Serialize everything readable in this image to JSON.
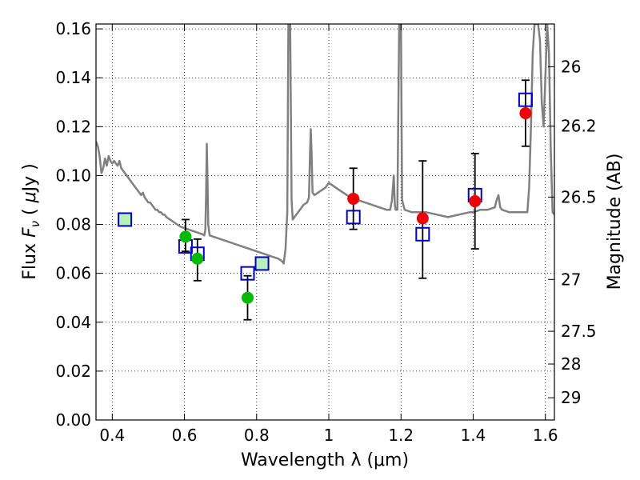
{
  "chart_data": {
    "type": "scatter",
    "xlabel": "Wavelength  λ (μm)",
    "ylabel": "Flux  F_ν  ( μJy )",
    "ylabel_right": "Magnitude (AB)",
    "xlim": [
      0.355,
      1.625
    ],
    "ylim": [
      0.0,
      0.162
    ],
    "grid": true,
    "xticks": [
      "0.4",
      "0.6",
      "0.8",
      "1",
      "1.2",
      "1.4",
      "1.6"
    ],
    "xtick_values": [
      0.4,
      0.6,
      0.8,
      1.0,
      1.2,
      1.4,
      1.6
    ],
    "yticks": [
      "0.00",
      "0.02",
      "0.04",
      "0.06",
      "0.08",
      "0.10",
      "0.12",
      "0.14",
      "0.16"
    ],
    "ytick_values": [
      0.0,
      0.02,
      0.04,
      0.06,
      0.08,
      0.1,
      0.12,
      0.14,
      0.16
    ],
    "right_ticks": [
      {
        "label": "26",
        "flux": 0.1445
      },
      {
        "label": "26.2",
        "flux": 0.1202
      },
      {
        "label": "26.5",
        "flux": 0.0912
      },
      {
        "label": "27",
        "flux": 0.0575
      },
      {
        "label": "27.5",
        "flux": 0.0363
      },
      {
        "label": "28",
        "flux": 0.0229
      },
      {
        "label": "29",
        "flux": 0.0091
      }
    ],
    "colors": {
      "model": "#808080",
      "green": "#00bb00",
      "red": "#ee0000",
      "square": "#0000cc",
      "square_fill": "#ffffff",
      "square_fill_green": "#b8f0b8",
      "errorbar": "#000000",
      "grid": "#000000"
    },
    "series": [
      {
        "marker": "green-circle",
        "points": [
          {
            "x": 0.603,
            "y": 0.075,
            "yerr": [
              0.069,
              0.082
            ]
          },
          {
            "x": 0.636,
            "y": 0.066,
            "yerr": [
              0.057,
              0.074
            ]
          },
          {
            "x": 0.775,
            "y": 0.05,
            "yerr": [
              0.041,
              0.059
            ]
          }
        ]
      },
      {
        "marker": "red-circle",
        "points": [
          {
            "x": 1.068,
            "y": 0.0905,
            "yerr": [
              0.078,
              0.103
            ]
          },
          {
            "x": 1.26,
            "y": 0.0825,
            "yerr": [
              0.058,
              0.106
            ]
          },
          {
            "x": 1.405,
            "y": 0.0895,
            "yerr": [
              0.07,
              0.109
            ]
          },
          {
            "x": 1.545,
            "y": 0.1255,
            "yerr": [
              0.112,
              0.139
            ]
          }
        ]
      },
      {
        "marker": "blue-square",
        "points": [
          {
            "x": 0.435,
            "y": 0.082,
            "fill": "green"
          },
          {
            "x": 0.603,
            "y": 0.071
          },
          {
            "x": 0.636,
            "y": 0.068
          },
          {
            "x": 0.775,
            "y": 0.06
          },
          {
            "x": 0.815,
            "y": 0.064,
            "fill": "green"
          },
          {
            "x": 1.068,
            "y": 0.083
          },
          {
            "x": 1.26,
            "y": 0.076
          },
          {
            "x": 1.405,
            "y": 0.092
          },
          {
            "x": 1.545,
            "y": 0.131
          }
        ]
      },
      {
        "marker": "model-line",
        "points": [
          [
            0.355,
            0.114
          ],
          [
            0.36,
            0.112
          ],
          [
            0.365,
            0.108
          ],
          [
            0.37,
            0.101
          ],
          [
            0.375,
            0.103
          ],
          [
            0.38,
            0.107
          ],
          [
            0.385,
            0.104
          ],
          [
            0.39,
            0.108
          ],
          [
            0.395,
            0.106
          ],
          [
            0.4,
            0.105
          ],
          [
            0.405,
            0.106
          ],
          [
            0.41,
            0.105
          ],
          [
            0.415,
            0.104
          ],
          [
            0.42,
            0.106
          ],
          [
            0.425,
            0.103
          ],
          [
            0.43,
            0.102
          ],
          [
            0.435,
            0.101
          ],
          [
            0.44,
            0.1
          ],
          [
            0.445,
            0.099
          ],
          [
            0.45,
            0.098
          ],
          [
            0.455,
            0.097
          ],
          [
            0.46,
            0.096
          ],
          [
            0.465,
            0.095
          ],
          [
            0.47,
            0.094
          ],
          [
            0.475,
            0.093
          ],
          [
            0.48,
            0.092
          ],
          [
            0.485,
            0.093
          ],
          [
            0.49,
            0.091
          ],
          [
            0.495,
            0.09
          ],
          [
            0.5,
            0.089
          ],
          [
            0.505,
            0.089
          ],
          [
            0.51,
            0.088
          ],
          [
            0.515,
            0.087
          ],
          [
            0.52,
            0.086
          ],
          [
            0.525,
            0.086
          ],
          [
            0.53,
            0.085
          ],
          [
            0.535,
            0.085
          ],
          [
            0.54,
            0.084
          ],
          [
            0.545,
            0.084
          ],
          [
            0.55,
            0.083
          ],
          [
            0.56,
            0.082
          ],
          [
            0.57,
            0.081
          ],
          [
            0.58,
            0.08
          ],
          [
            0.59,
            0.079
          ],
          [
            0.6,
            0.0785
          ],
          [
            0.61,
            0.078
          ],
          [
            0.62,
            0.0775
          ],
          [
            0.63,
            0.077
          ],
          [
            0.64,
            0.0765
          ],
          [
            0.65,
            0.076
          ],
          [
            0.655,
            0.0755
          ],
          [
            0.658,
            0.078
          ],
          [
            0.66,
            0.092
          ],
          [
            0.662,
            0.113
          ],
          [
            0.664,
            0.098
          ],
          [
            0.666,
            0.08
          ],
          [
            0.67,
            0.0755
          ],
          [
            0.68,
            0.075
          ],
          [
            0.7,
            0.074
          ],
          [
            0.72,
            0.073
          ],
          [
            0.74,
            0.072
          ],
          [
            0.76,
            0.071
          ],
          [
            0.78,
            0.07
          ],
          [
            0.8,
            0.069
          ],
          [
            0.82,
            0.068
          ],
          [
            0.84,
            0.067
          ],
          [
            0.86,
            0.066
          ],
          [
            0.87,
            0.065
          ],
          [
            0.875,
            0.064
          ],
          [
            0.88,
            0.07
          ],
          [
            0.885,
            0.085
          ],
          [
            0.888,
            0.162
          ],
          [
            0.893,
            0.162
          ],
          [
            0.897,
            0.09
          ],
          [
            0.9,
            0.082
          ],
          [
            0.91,
            0.084
          ],
          [
            0.92,
            0.086
          ],
          [
            0.93,
            0.088
          ],
          [
            0.94,
            0.089
          ],
          [
            0.945,
            0.091
          ],
          [
            0.948,
            0.11
          ],
          [
            0.95,
            0.119
          ],
          [
            0.952,
            0.11
          ],
          [
            0.955,
            0.093
          ],
          [
            0.96,
            0.092
          ],
          [
            0.97,
            0.093
          ],
          [
            0.98,
            0.094
          ],
          [
            0.99,
            0.095
          ],
          [
            1.0,
            0.097
          ],
          [
            1.01,
            0.096
          ],
          [
            1.02,
            0.095
          ],
          [
            1.03,
            0.094
          ],
          [
            1.04,
            0.093
          ],
          [
            1.05,
            0.092
          ],
          [
            1.06,
            0.091
          ],
          [
            1.08,
            0.09
          ],
          [
            1.1,
            0.089
          ],
          [
            1.12,
            0.088
          ],
          [
            1.14,
            0.087
          ],
          [
            1.16,
            0.086
          ],
          [
            1.17,
            0.086
          ],
          [
            1.175,
            0.09
          ],
          [
            1.18,
            0.1
          ],
          [
            1.183,
            0.088
          ],
          [
            1.185,
            0.086
          ],
          [
            1.19,
            0.086
          ],
          [
            1.195,
            0.162
          ],
          [
            1.2,
            0.162
          ],
          [
            1.203,
            0.09
          ],
          [
            1.21,
            0.086
          ],
          [
            1.23,
            0.085
          ],
          [
            1.25,
            0.085
          ],
          [
            1.27,
            0.085
          ],
          [
            1.3,
            0.084
          ],
          [
            1.33,
            0.083
          ],
          [
            1.36,
            0.084
          ],
          [
            1.39,
            0.085
          ],
          [
            1.4,
            0.085
          ],
          [
            1.42,
            0.086
          ],
          [
            1.44,
            0.086
          ],
          [
            1.46,
            0.087
          ],
          [
            1.465,
            0.09
          ],
          [
            1.47,
            0.092
          ],
          [
            1.475,
            0.087
          ],
          [
            1.48,
            0.086
          ],
          [
            1.5,
            0.085
          ],
          [
            1.52,
            0.085
          ],
          [
            1.54,
            0.085
          ],
          [
            1.55,
            0.085
          ],
          [
            1.555,
            0.095
          ],
          [
            1.56,
            0.12
          ],
          [
            1.565,
            0.15
          ],
          [
            1.57,
            0.162
          ],
          [
            1.58,
            0.162
          ],
          [
            1.585,
            0.155
          ],
          [
            1.59,
            0.13
          ],
          [
            1.595,
            0.12
          ],
          [
            1.6,
            0.14
          ],
          [
            1.605,
            0.162
          ],
          [
            1.61,
            0.15
          ],
          [
            1.615,
            0.11
          ],
          [
            1.62,
            0.085
          ],
          [
            1.625,
            0.084
          ]
        ]
      }
    ]
  }
}
